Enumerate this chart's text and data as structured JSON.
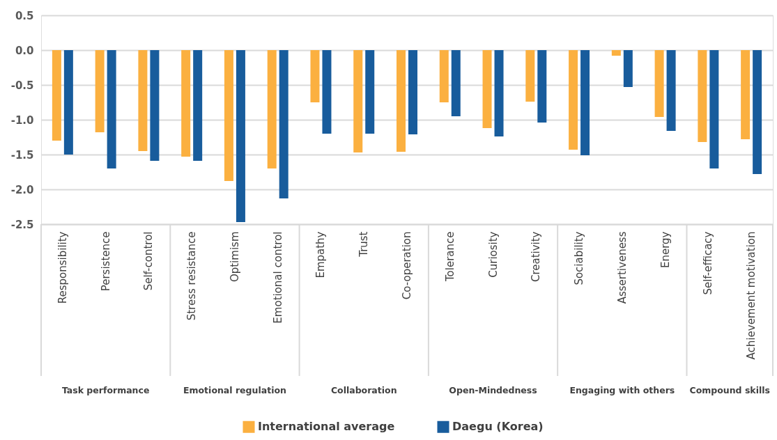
{
  "chart_data": {
    "type": "bar",
    "categories": [
      "Responsibility",
      "Persistence",
      "Self-control",
      "Stress resistance",
      "Optimism",
      "Emotional control",
      "Empathy",
      "Trust",
      "Co-operation",
      "Tolerance",
      "Curiosity",
      "Creativity",
      "Sociability",
      "Assertiveness",
      "Energy",
      "Self-efficacy",
      "Achievement motivation"
    ],
    "series": [
      {
        "name": "International average",
        "color": "#fbb040",
        "values": [
          -1.3,
          -1.18,
          -1.45,
          -1.53,
          -1.88,
          -1.7,
          -0.75,
          -1.47,
          -1.46,
          -0.75,
          -1.12,
          -0.74,
          -1.43,
          -0.08,
          -0.96,
          -1.32,
          -1.28
        ]
      },
      {
        "name": "Daegu (Korea)",
        "color": "#185c9c",
        "values": [
          -1.5,
          -1.7,
          -1.59,
          -1.59,
          -2.47,
          -2.13,
          -1.2,
          -1.2,
          -1.21,
          -0.95,
          -1.24,
          -1.04,
          -1.51,
          -0.53,
          -1.16,
          -1.7,
          -1.78
        ]
      }
    ],
    "ylim": [
      -2.5,
      0.5
    ],
    "yticks": [
      0.5,
      {
        "value": 0,
        "label": "0.0"
      },
      -0.5,
      {
        "value": -1,
        "label": "-1.0"
      },
      -1.5,
      {
        "value": -2,
        "label": "-2.0"
      },
      -2.5
    ],
    "grid": "y",
    "legend": "bottom",
    "annotations": [
      "Task performance",
      "Emotional regulation",
      "Collaboration",
      "Open-Mindedness",
      "Engaging with others",
      "Compound skills"
    ]
  }
}
